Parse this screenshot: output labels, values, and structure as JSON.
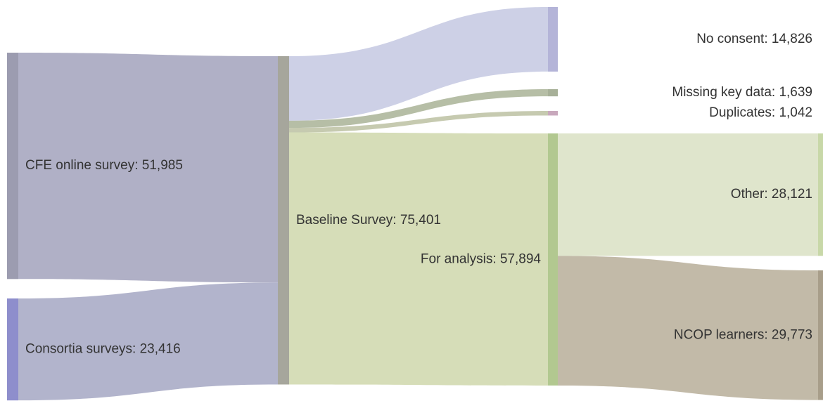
{
  "chart_data": {
    "type": "sankey",
    "nodes": [
      {
        "label": "CFE online survey: 51,985",
        "color": "#9c9cb0"
      },
      {
        "label": "Consortia surveys: 23,416",
        "color": "#8e8ecc"
      },
      {
        "label": "Baseline Survey: 75,401",
        "color": "#a6a69c"
      },
      {
        "label": "No consent: 14,826",
        "color": "#b4b4d8"
      },
      {
        "label": "Missing key data: 1,639",
        "color": "#a7b098"
      },
      {
        "label": "Duplicates: 1,042",
        "color": "#c8a8bc"
      },
      {
        "label": "For analysis: 57,894",
        "color": "#b2c890"
      },
      {
        "label": "Other: 28,121",
        "color": "#c8d8a8"
      },
      {
        "label": "NCOP learners: 29,773",
        "color": "#a89e8a"
      }
    ],
    "links": [
      {
        "source": 0,
        "target": 2,
        "value": 51985,
        "color": "#b0b0c6"
      },
      {
        "source": 1,
        "target": 2,
        "value": 23416,
        "color": "#b2b4cc"
      },
      {
        "source": 2,
        "target": 3,
        "value": 14826,
        "color": "#cdd0e6"
      },
      {
        "source": 2,
        "target": 4,
        "value": 1639,
        "color": "#b6bea6"
      },
      {
        "source": 2,
        "target": 5,
        "value": 1042,
        "color": "#c6cab0"
      },
      {
        "source": 2,
        "target": 6,
        "value": 57894,
        "color": "#d6ddb8"
      },
      {
        "source": 6,
        "target": 7,
        "value": 28121,
        "color": "#dfe5cc"
      },
      {
        "source": 6,
        "target": 8,
        "value": 29773,
        "color": "#c2baa8"
      }
    ]
  }
}
